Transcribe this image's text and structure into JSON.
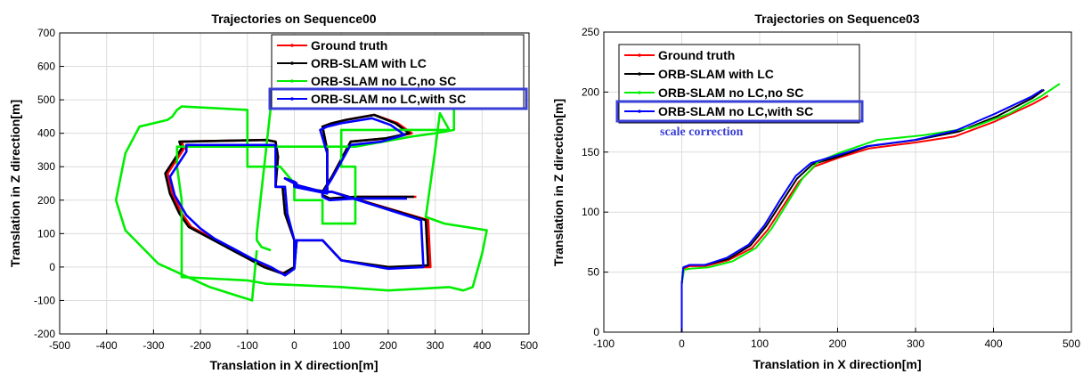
{
  "colors": {
    "ground_truth": "#ff0000",
    "with_lc": "#000000",
    "no_lc_no_sc": "#00ee00",
    "no_lc_with_sc": "#0000ff",
    "highlight_box": "#3a3fd6"
  },
  "chart_data": [
    {
      "type": "line",
      "title": "Trajectories on Sequence00",
      "xlabel": "Translation in X direction[m]",
      "ylabel": "Translation in Z direction[m]",
      "xlim": [
        -500,
        500
      ],
      "ylim": [
        -200,
        700
      ],
      "xticks": [
        -500,
        -400,
        -300,
        -200,
        -100,
        0,
        100,
        200,
        300,
        400,
        500
      ],
      "yticks": [
        -200,
        -100,
        0,
        100,
        200,
        300,
        400,
        500,
        600,
        700
      ],
      "grid": true,
      "legend_position": "top-right",
      "legend": [
        "Ground truth",
        "ORB-SLAM with LC",
        "ORB-SLAM no LC,no SC",
        "ORB-SLAM no LC,with SC"
      ],
      "highlighted_legend_entry": "ORB-SLAM no LC,with SC",
      "series": [
        {
          "name": "Ground truth",
          "color_key": "ground_truth",
          "x": [
            0,
            0,
            -20,
            -25,
            -40,
            -35,
            -40,
            -60,
            -240,
            -235,
            -270,
            -260,
            -240,
            -220,
            -180,
            -140,
            -100,
            -60,
            -20,
            0,
            5,
            60,
            100,
            200,
            290,
            285,
            80,
            60,
            5,
            5,
            0,
            -20,
            0,
            0,
            70,
            70,
            60,
            80,
            110,
            170,
            220,
            250,
            200,
            120,
            80,
            60,
            60,
            75,
            130,
            260
          ],
          "y": [
            0,
            80,
            160,
            240,
            240,
            330,
            375,
            380,
            375,
            355,
            280,
            220,
            160,
            120,
            90,
            60,
            30,
            0,
            -20,
            0,
            80,
            80,
            20,
            0,
            0,
            140,
            225,
            225,
            245,
            250,
            255,
            265,
            250,
            240,
            225,
            350,
            420,
            430,
            440,
            455,
            430,
            400,
            385,
            375,
            270,
            225,
            215,
            205,
            210,
            210
          ]
        },
        {
          "name": "ORB-SLAM with LC",
          "color_key": "with_lc",
          "x": [
            0,
            0,
            -20,
            -25,
            -40,
            -35,
            -40,
            -60,
            -245,
            -240,
            -275,
            -265,
            -245,
            -225,
            -185,
            -145,
            -105,
            -65,
            -25,
            0,
            5,
            60,
            100,
            200,
            285,
            280,
            80,
            60,
            5,
            5,
            0,
            -20,
            0,
            0,
            70,
            70,
            60,
            80,
            110,
            170,
            215,
            245,
            195,
            120,
            80,
            60,
            60,
            75,
            130,
            255
          ],
          "y": [
            0,
            80,
            160,
            240,
            240,
            330,
            375,
            380,
            375,
            355,
            280,
            220,
            160,
            120,
            90,
            60,
            30,
            0,
            -20,
            0,
            80,
            80,
            20,
            0,
            5,
            140,
            225,
            225,
            245,
            250,
            255,
            265,
            250,
            240,
            225,
            350,
            420,
            430,
            440,
            455,
            430,
            400,
            385,
            375,
            270,
            225,
            215,
            205,
            210,
            210
          ]
        },
        {
          "name": "ORB-SLAM no LC,no SC",
          "color_key": "no_lc_no_sc",
          "x": [
            -80,
            -90,
            -180,
            -290,
            -360,
            -380,
            -360,
            -330,
            -270,
            -260,
            -250,
            -240,
            -100,
            -100,
            -30,
            0,
            0,
            60,
            60,
            130,
            130,
            100,
            100,
            330,
            310,
            300,
            280,
            320,
            410,
            400,
            380,
            360,
            330,
            200,
            100,
            -60,
            -100,
            -240,
            -240,
            -250,
            -250,
            130,
            250,
            300,
            340,
            340,
            -50,
            -80,
            -80,
            -70,
            -50
          ],
          "y": [
            50,
            -100,
            -60,
            10,
            110,
            200,
            340,
            420,
            440,
            450,
            470,
            480,
            470,
            300,
            300,
            250,
            200,
            200,
            130,
            130,
            300,
            300,
            410,
            410,
            460,
            350,
            150,
            130,
            110,
            40,
            -60,
            -70,
            -60,
            -70,
            -60,
            -50,
            -40,
            -30,
            200,
            300,
            360,
            360,
            390,
            400,
            410,
            480,
            480,
            100,
            80,
            60,
            50
          ]
        },
        {
          "name": "ORB-SLAM no LC,with SC",
          "color_key": "no_lc_with_sc",
          "x": [
            0,
            0,
            -15,
            -20,
            -40,
            -40,
            -40,
            -60,
            -230,
            -230,
            -265,
            -255,
            -230,
            -200,
            -170,
            -130,
            -90,
            -50,
            -20,
            0,
            5,
            60,
            100,
            200,
            275,
            270,
            80,
            60,
            5,
            5,
            0,
            -20,
            0,
            0,
            70,
            70,
            55,
            70,
            100,
            165,
            205,
            235,
            185,
            120,
            80,
            60,
            60,
            75,
            130,
            240
          ],
          "y": [
            0,
            80,
            160,
            240,
            240,
            330,
            365,
            365,
            365,
            345,
            270,
            215,
            155,
            115,
            85,
            55,
            25,
            0,
            -25,
            -5,
            80,
            80,
            20,
            -5,
            0,
            140,
            225,
            225,
            245,
            250,
            255,
            265,
            250,
            240,
            220,
            340,
            410,
            420,
            430,
            445,
            425,
            395,
            375,
            365,
            265,
            220,
            210,
            200,
            205,
            205
          ]
        }
      ]
    },
    {
      "type": "line",
      "title": "Trajectories on Sequence03",
      "xlabel": "Translation in X direction[m]",
      "ylabel": "Translation in Z direction[m]",
      "xlim": [
        -100,
        500
      ],
      "ylim": [
        0,
        250
      ],
      "xticks": [
        -100,
        0,
        100,
        200,
        300,
        400,
        500
      ],
      "yticks": [
        0,
        50,
        100,
        150,
        200,
        250
      ],
      "grid": true,
      "legend_position": "top-left",
      "legend": [
        "Ground truth",
        "ORB-SLAM with LC",
        "ORB-SLAM no LC,no SC",
        "ORB-SLAM no LC,with SC"
      ],
      "highlighted_legend_entry": "ORB-SLAM no LC,with SC",
      "annotation": "scale correction",
      "series": [
        {
          "name": "Ground truth",
          "color_key": "ground_truth",
          "x": [
            0,
            0,
            2,
            10,
            30,
            60,
            90,
            110,
            130,
            150,
            170,
            200,
            240,
            300,
            350,
            400,
            450,
            470
          ],
          "y": [
            0,
            40,
            53,
            55,
            55,
            60,
            70,
            85,
            105,
            125,
            138,
            145,
            153,
            158,
            163,
            175,
            190,
            197
          ]
        },
        {
          "name": "ORB-SLAM with LC",
          "color_key": "with_lc",
          "x": [
            0,
            0,
            2,
            10,
            30,
            60,
            88,
            108,
            128,
            148,
            168,
            200,
            240,
            300,
            355,
            405,
            450,
            465
          ],
          "y": [
            0,
            40,
            54,
            56,
            56,
            61,
            72,
            88,
            108,
            128,
            140,
            146,
            155,
            160,
            167,
            180,
            195,
            202
          ]
        },
        {
          "name": "ORB-SLAM no LC,no SC",
          "color_key": "no_lc_no_sc",
          "x": [
            0,
            0,
            3,
            12,
            35,
            65,
            95,
            115,
            135,
            155,
            175,
            205,
            250,
            310,
            370,
            420,
            460,
            485
          ],
          "y": [
            0,
            40,
            52,
            53,
            54,
            59,
            70,
            86,
            107,
            128,
            142,
            150,
            160,
            164,
            170,
            182,
            196,
            207
          ]
        },
        {
          "name": "ORB-SLAM no LC,with SC",
          "color_key": "no_lc_with_sc",
          "x": [
            0,
            0,
            2,
            10,
            30,
            58,
            86,
            106,
            126,
            146,
            166,
            198,
            238,
            298,
            352,
            402,
            448,
            463
          ],
          "y": [
            0,
            40,
            54,
            56,
            56,
            62,
            73,
            89,
            110,
            130,
            141,
            147,
            155,
            160,
            168,
            182,
            196,
            202
          ]
        }
      ]
    }
  ]
}
